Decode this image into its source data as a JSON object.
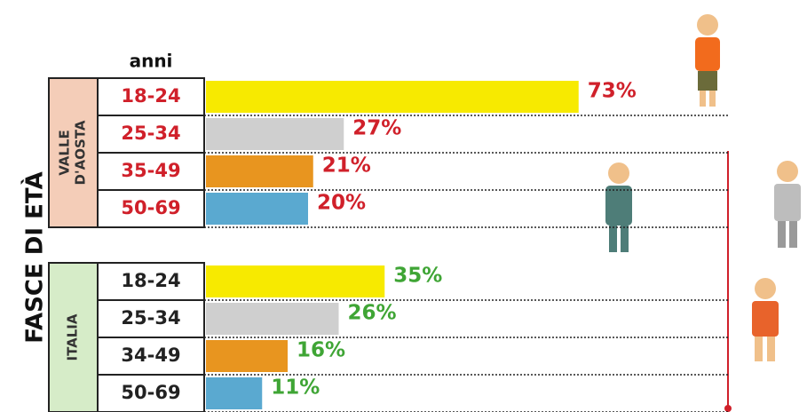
{
  "chart_data": {
    "type": "bar",
    "axis_title": "FASCE DI ETÀ",
    "header": "anni",
    "colors": [
      "#f7ea00",
      "#cfcfcf",
      "#e8951f",
      "#5aa9d0"
    ],
    "groups": [
      {
        "name": [
          "VALLE",
          "D'AOSTA"
        ],
        "color": "#f4cdb8",
        "label_color": "#d0202a",
        "categories": [
          "18-24",
          "25-34",
          "35-49",
          "50-69"
        ],
        "values": [
          73,
          27,
          21,
          20
        ],
        "value_labels": [
          "73%",
          "27%",
          "21%",
          "20%"
        ]
      },
      {
        "name": [
          "ITALIA"
        ],
        "color": "#d6ecc8",
        "label_color": "#3fa535",
        "categories": [
          "18-24",
          "25-34",
          "34-49",
          "50-69"
        ],
        "values": [
          35,
          26,
          16,
          11
        ],
        "value_labels": [
          "35%",
          "26%",
          "16%",
          "11%"
        ]
      }
    ]
  }
}
